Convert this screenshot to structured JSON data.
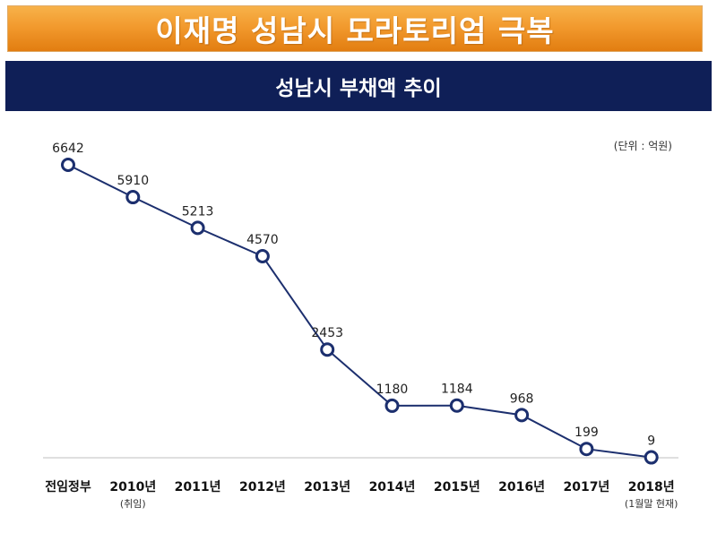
{
  "header": {
    "title": "이재명 성남시 모라토리엄 극복",
    "subtitle": "성남시 부채액 추이",
    "unit": "(단위 : 억원)"
  },
  "colors": {
    "title_bg": "#f29a2e",
    "subtitle_bg": "#0f1f57",
    "line": "#1c2f6e",
    "marker_fill": "#ffffff"
  },
  "chart_data": {
    "type": "line",
    "title": "성남시 부채액 추이",
    "unit": "(단위 : 억원)",
    "categories": [
      "전임정부",
      "2010년",
      "2011년",
      "2012년",
      "2013년",
      "2014년",
      "2015년",
      "2016년",
      "2017년",
      "2018년"
    ],
    "category_notes": [
      "",
      "(취임)",
      "",
      "",
      "",
      "",
      "",
      "",
      "",
      "(1월말 현재)"
    ],
    "values": [
      6642,
      5910,
      5213,
      4570,
      2453,
      1180,
      1184,
      968,
      199,
      9
    ],
    "ylim": [
      0,
      6642
    ],
    "grid": false,
    "legend": "none"
  }
}
